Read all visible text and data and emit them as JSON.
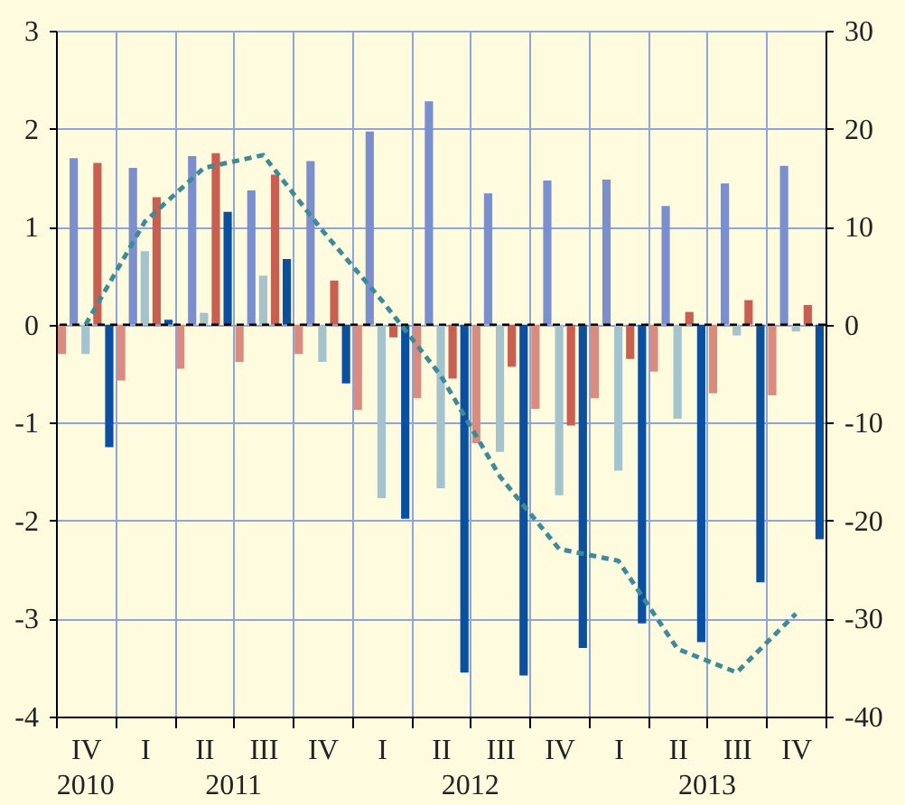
{
  "chart_data": {
    "type": "bar",
    "categories": [
      "IV",
      "I",
      "II",
      "III",
      "IV",
      "I",
      "II",
      "III",
      "IV",
      "I",
      "II",
      "III",
      "IV"
    ],
    "annotations": [
      "2010",
      "2011",
      "2012",
      "2013"
    ],
    "series": [
      {
        "color": "#d98b7f",
        "values": [
          -0.3,
          -0.57,
          -0.45,
          -0.38,
          -0.3,
          -0.87,
          -0.75,
          -1.21,
          -0.86,
          -0.75,
          -0.48,
          -0.7,
          -0.72
        ]
      },
      {
        "color": "#7b8fcf",
        "values": [
          1.7,
          1.6,
          1.72,
          1.37,
          1.67,
          1.97,
          2.28,
          1.34,
          1.47,
          1.48,
          1.21,
          1.44,
          1.62
        ]
      },
      {
        "color": "#a5c3cc",
        "values": [
          -0.3,
          0.75,
          0.12,
          0.5,
          -0.38,
          -1.77,
          -1.67,
          -1.3,
          -1.74,
          -1.49,
          -0.96,
          -0.11,
          -0.07
        ]
      },
      {
        "color": "#c95f50",
        "values": [
          1.65,
          1.3,
          1.75,
          1.53,
          0.45,
          -0.13,
          -0.55,
          -0.43,
          -1.03,
          -0.35,
          0.13,
          0.25,
          0.2
        ]
      },
      {
        "color": "#0a4fa0",
        "values": [
          -1.25,
          0.05,
          1.15,
          0.67,
          -0.6,
          -1.98,
          -3.55,
          -3.58,
          -3.3,
          -3.05,
          -3.24,
          -2.63,
          -2.19
        ]
      },
      {
        "type": "line",
        "axis": "y2",
        "color": "#3f8a99",
        "line_style": "dashed",
        "values": [
          0,
          10.5,
          16,
          17.3,
          9.6,
          2.5,
          -5.2,
          -15.5,
          -22.9,
          -24.1,
          -33.1,
          -35.5,
          -29.5
        ]
      }
    ],
    "ylim": [
      -4,
      3
    ],
    "yticks": [
      -4,
      -3,
      -2,
      -1,
      0,
      1,
      2,
      3
    ],
    "y2lim": [
      -40,
      30
    ],
    "y2ticks": [
      -40,
      -30,
      -20,
      -10,
      0,
      10,
      20,
      30
    ],
    "grid": true,
    "ref_lines": [
      {
        "axis": "y",
        "value": 0,
        "color": "#000000",
        "line_style": "dashed"
      }
    ]
  }
}
